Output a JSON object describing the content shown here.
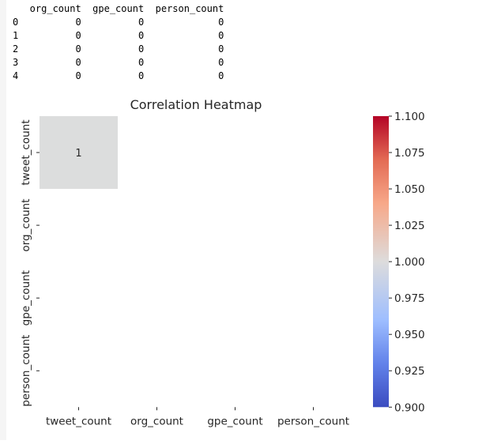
{
  "dataframe_output": {
    "header": "   org_count  gpe_count  person_count",
    "rows": [
      "0          0          0             0",
      "1          0          0             0",
      "2          0          0             0",
      "3          0          0             0",
      "4          0          0             0"
    ]
  },
  "chart_data": {
    "type": "heatmap",
    "title": "Correlation Heatmap",
    "row_labels": [
      "tweet_count",
      "org_count",
      "gpe_count",
      "person_count"
    ],
    "col_labels": [
      "tweet_count",
      "org_count",
      "gpe_count",
      "person_count"
    ],
    "matrix": [
      [
        1,
        null,
        null,
        null
      ],
      [
        null,
        null,
        null,
        null
      ],
      [
        null,
        null,
        null,
        null
      ],
      [
        null,
        null,
        null,
        null
      ]
    ],
    "annotations": [
      [
        "1",
        "",
        "",
        ""
      ],
      [
        "",
        "",
        "",
        ""
      ],
      [
        "",
        "",
        "",
        ""
      ],
      [
        "",
        "",
        "",
        ""
      ]
    ],
    "colormap": "coolwarm",
    "colorbar": {
      "vmin": 0.9,
      "vmax": 1.1,
      "ticks": [
        "1.100",
        "1.075",
        "1.050",
        "1.025",
        "1.000",
        "0.975",
        "0.950",
        "0.925",
        "0.900"
      ],
      "tick_values": [
        1.1,
        1.075,
        1.05,
        1.025,
        1.0,
        0.975,
        0.95,
        0.925,
        0.9
      ]
    },
    "colors": {
      "cell_value_1": "#dcdddd",
      "cmap_low": "#3b4cc0",
      "cmap_mid": "#dddcdc",
      "cmap_high": "#b40426"
    },
    "grid": false
  }
}
